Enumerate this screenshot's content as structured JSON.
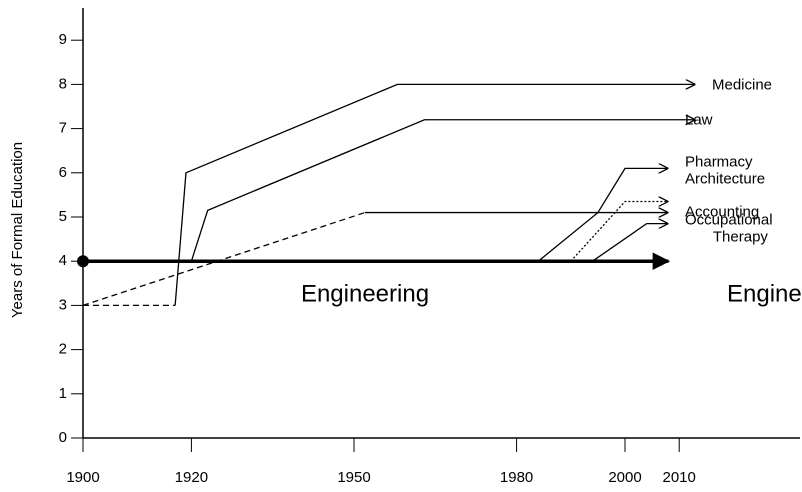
{
  "chart_data": {
    "type": "line",
    "y_label": "Years of Formal Education",
    "xlim": [
      1900,
      2032
    ],
    "ylim": [
      0,
      9.6
    ],
    "xticks": [
      1900,
      1920,
      1950,
      1980,
      2000,
      2010
    ],
    "yticks": [
      0,
      1,
      2,
      3,
      4,
      5,
      6,
      7,
      8,
      9
    ],
    "annotations": [
      "Engineering"
    ],
    "series": [
      {
        "name": "Medicine",
        "color": "#000000",
        "style": "solid",
        "x": [
          1917,
          1919,
          1958,
          2013
        ],
        "values": [
          3,
          6,
          8,
          8
        ]
      },
      {
        "name": "Law",
        "color": "#000000",
        "style": "solid",
        "x": [
          1920,
          1923,
          1963,
          2013
        ],
        "values": [
          4,
          5.15,
          7.2,
          7.2
        ]
      },
      {
        "name": "Pharmacy",
        "color": "#000000",
        "style": "solid",
        "x": [
          1984,
          1995,
          2000,
          2008
        ],
        "values": [
          4,
          5.1,
          6.1,
          6.1
        ]
      },
      {
        "name": "Architecture",
        "color": "#000000",
        "style": "dotted",
        "x": [
          1990,
          2000,
          2008
        ],
        "values": [
          4,
          5.35,
          5.35
        ]
      },
      {
        "name": "Accounting",
        "color": "#000000",
        "style": "solid",
        "x": [
          1952,
          1995,
          2008
        ],
        "values": [
          5.1,
          5.1,
          5.1
        ]
      },
      {
        "name": "Occupational Therapy",
        "color": "#000000",
        "style": "solid",
        "x": [
          1994,
          2004,
          2008
        ],
        "values": [
          4,
          4.85,
          4.85
        ]
      },
      {
        "name": "Engineering",
        "color": "#000000",
        "style": "thick",
        "x": [
          1900,
          2008
        ],
        "values": [
          4,
          4
        ]
      },
      {
        "color": "#000000",
        "style": "dashed",
        "x": [
          1900,
          1952
        ],
        "values": [
          3,
          5.1
        ]
      },
      {
        "color": "#000000",
        "style": "dashed",
        "x": [
          1900,
          1917
        ],
        "values": [
          3,
          3
        ]
      }
    ]
  }
}
